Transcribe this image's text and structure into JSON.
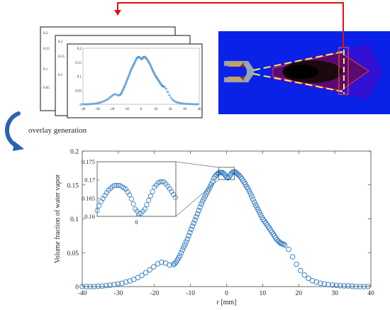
{
  "caption": "overlay  generation",
  "colors": {
    "marker": "#2b78c0",
    "marker_fill": "#8bbbe6",
    "sim_background": "#0a22e8",
    "arrow": "#e01010",
    "curl_arrow": "#2a63b0",
    "dashes": "#f4ee60",
    "box": "#e04040"
  },
  "icons": {
    "curl": "curved-arrow-icon",
    "nozzle": "nozzle-icon"
  },
  "small_plot": {
    "x_ticks": [
      "-40",
      "-30",
      "-20",
      "-10",
      "0",
      "10",
      "20",
      "30",
      "40"
    ],
    "y_ticks": [
      "0",
      "0.05",
      "0.1",
      "0.15",
      "0.2"
    ],
    "back_y_ticks": [
      "0.2",
      "0.15",
      "0.1",
      "0.05",
      "0"
    ]
  },
  "chart_data": {
    "type": "scatter",
    "xlabel": "r [mm]",
    "ylabel": "Volume fraction of water vapor",
    "xlim": [
      -40,
      40
    ],
    "ylim": [
      0,
      0.2
    ],
    "x_ticks": [
      "-40",
      "-30",
      "-20",
      "-10",
      "0",
      "10",
      "20",
      "30",
      "40"
    ],
    "y_ticks": [
      "0",
      "0.05",
      "0.1",
      "0.15",
      "0.2"
    ],
    "grid": false,
    "inset": {
      "xlim": [
        -3.3,
        3.3
      ],
      "ylim": [
        0.16,
        0.175
      ],
      "x_ticks": [
        "0"
      ],
      "y_ticks": [
        "0.16",
        "0.165",
        "0.17",
        "0.175"
      ]
    },
    "profile": [
      [
        -40,
        0.0
      ],
      [
        -37,
        0.0
      ],
      [
        -34,
        0.001
      ],
      [
        -31,
        0.003
      ],
      [
        -29,
        0.005
      ],
      [
        -27,
        0.008
      ],
      [
        -25,
        0.012
      ],
      [
        -23,
        0.018
      ],
      [
        -21,
        0.026
      ],
      [
        -19,
        0.034
      ],
      [
        -18,
        0.036
      ],
      [
        -17,
        0.035
      ],
      [
        -16,
        0.032
      ],
      [
        -15,
        0.031
      ],
      [
        -14,
        0.036
      ],
      [
        -13,
        0.045
      ],
      [
        -12,
        0.057
      ],
      [
        -11,
        0.068
      ],
      [
        -10,
        0.082
      ],
      [
        -9,
        0.095
      ],
      [
        -8,
        0.108
      ],
      [
        -7,
        0.122
      ],
      [
        -6,
        0.133
      ],
      [
        -5,
        0.143
      ],
      [
        -4,
        0.153
      ],
      [
        -3.5,
        0.16
      ],
      [
        -3,
        0.164
      ],
      [
        -2.4,
        0.167
      ],
      [
        -1.9,
        0.1685
      ],
      [
        -1.4,
        0.1685
      ],
      [
        -0.9,
        0.1675
      ],
      [
        -0.5,
        0.1655
      ],
      [
        -0.1,
        0.162
      ],
      [
        0.3,
        0.1605
      ],
      [
        0.7,
        0.162
      ],
      [
        1.1,
        0.165
      ],
      [
        1.5,
        0.168
      ],
      [
        1.9,
        0.1695
      ],
      [
        2.3,
        0.1695
      ],
      [
        2.7,
        0.168
      ],
      [
        3.1,
        0.166
      ],
      [
        3.5,
        0.164
      ],
      [
        4,
        0.161
      ],
      [
        5,
        0.153
      ],
      [
        6,
        0.144
      ],
      [
        7,
        0.133
      ],
      [
        8,
        0.121
      ],
      [
        9,
        0.111
      ],
      [
        10,
        0.1
      ],
      [
        11,
        0.093
      ],
      [
        12,
        0.085
      ],
      [
        13,
        0.077
      ],
      [
        14,
        0.069
      ],
      [
        15,
        0.064
      ],
      [
        16,
        0.062
      ],
      [
        17,
        0.057
      ],
      [
        18,
        0.047
      ],
      [
        19,
        0.037
      ],
      [
        20,
        0.027
      ],
      [
        21,
        0.02
      ],
      [
        22,
        0.015
      ],
      [
        23,
        0.011
      ],
      [
        24,
        0.008
      ],
      [
        26,
        0.005
      ],
      [
        28,
        0.003
      ],
      [
        30,
        0.002
      ],
      [
        32,
        0.001
      ],
      [
        34,
        0.001
      ],
      [
        36,
        0.0
      ],
      [
        38,
        0.0
      ],
      [
        40,
        0.0
      ]
    ]
  }
}
